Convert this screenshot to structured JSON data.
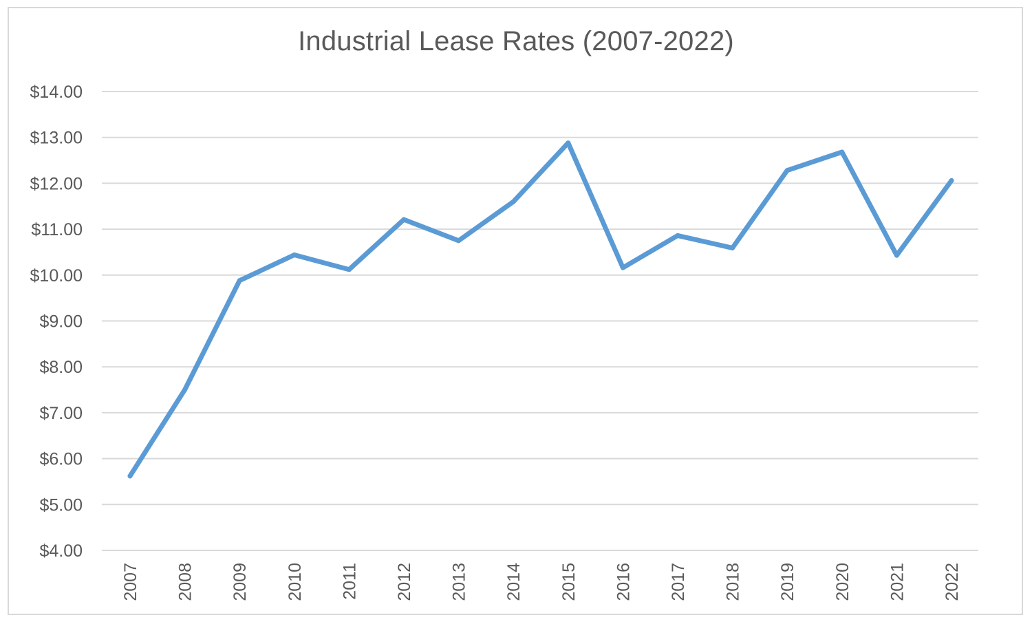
{
  "chart_data": {
    "type": "line",
    "title": "Industrial Lease Rates (2007-2022)",
    "xlabel": "",
    "ylabel": "",
    "categories": [
      "2007",
      "2008",
      "2009",
      "2010",
      "2011",
      "2012",
      "2013",
      "2014",
      "2015",
      "2016",
      "2017",
      "2018",
      "2019",
      "2020",
      "2021",
      "2022"
    ],
    "series": [
      {
        "values": [
          5.62,
          7.5,
          9.88,
          10.44,
          10.12,
          11.21,
          10.75,
          11.6,
          12.88,
          10.16,
          10.86,
          10.59,
          12.28,
          12.68,
          10.43,
          12.06
        ]
      }
    ],
    "ylim": [
      4,
      14
    ],
    "y_ticks": [
      "$4.00",
      "$5.00",
      "$6.00",
      "$7.00",
      "$8.00",
      "$9.00",
      "$10.00",
      "$11.00",
      "$12.00",
      "$13.00",
      "$14.00"
    ],
    "y_tick_values": [
      4,
      5,
      6,
      7,
      8,
      9,
      10,
      11,
      12,
      13,
      14
    ],
    "grid": true,
    "legend": "none",
    "colors": {
      "line": "#5b9bd5",
      "grid": "#d9d9d9",
      "text": "#595959",
      "border": "#d9d9d9"
    }
  }
}
